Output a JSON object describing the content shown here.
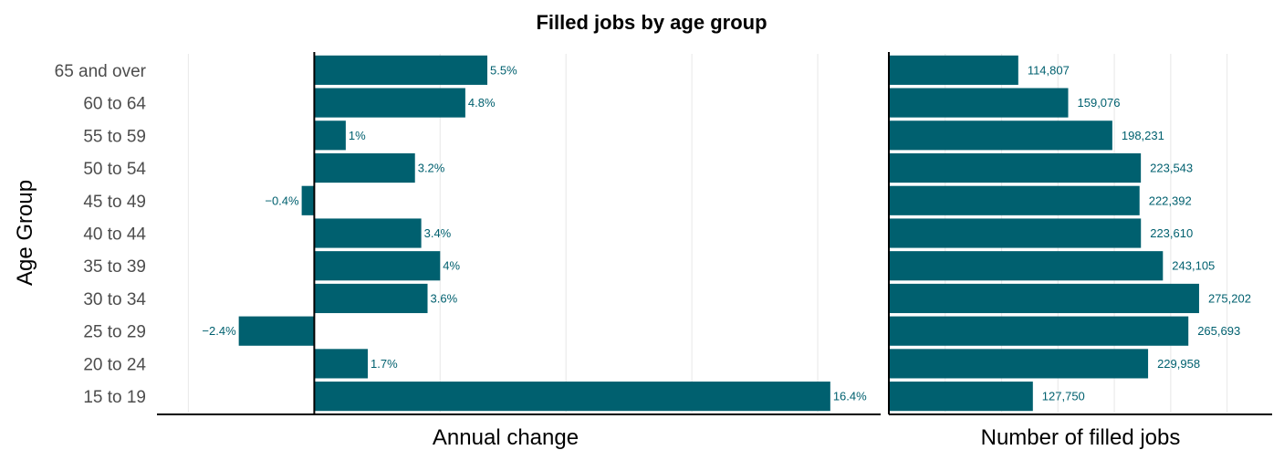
{
  "title": "Filled jobs by age group",
  "y_axis_label": "Age Group",
  "bar_color": "#00606f",
  "label_color": "#00606f",
  "chart_data": [
    {
      "type": "bar",
      "orientation": "horizontal",
      "xlabel": "Annual change",
      "ylabel": "Age Group",
      "categories": [
        "15 to 19",
        "20 to 24",
        "25 to 29",
        "30 to 34",
        "35 to 39",
        "40 to 44",
        "45 to 49",
        "50 to 54",
        "55 to 59",
        "60 to 64",
        "65 and over"
      ],
      "values": [
        16.4,
        1.7,
        -2.4,
        3.6,
        4.0,
        3.4,
        -0.4,
        3.2,
        1.0,
        4.8,
        5.5
      ],
      "data_labels": [
        "16.4%",
        "1.7%",
        "−2.4%",
        "3.6%",
        "4%",
        "3.4%",
        "−0.4%",
        "3.2%",
        "1%",
        "4.8%",
        "5.5%"
      ],
      "xlim": [
        -5,
        18
      ],
      "grid": true
    },
    {
      "type": "bar",
      "orientation": "horizontal",
      "xlabel": "Number of filled jobs",
      "ylabel": "Age Group",
      "categories": [
        "15 to 19",
        "20 to 24",
        "25 to 29",
        "30 to 34",
        "35 to 39",
        "40 to 44",
        "45 to 49",
        "50 to 54",
        "55 to 59",
        "60 to 64",
        "65 and over"
      ],
      "values": [
        127750,
        229958,
        265693,
        275202,
        243105,
        223610,
        222392,
        223543,
        198231,
        159076,
        114807
      ],
      "data_labels": [
        "127,750",
        "229,958",
        "265,693",
        "275,202",
        "243,105",
        "223,610",
        "222,392",
        "223,543",
        "198,231",
        "159,076",
        "114,807"
      ],
      "xlim": [
        0,
        340000
      ],
      "grid": true
    }
  ]
}
